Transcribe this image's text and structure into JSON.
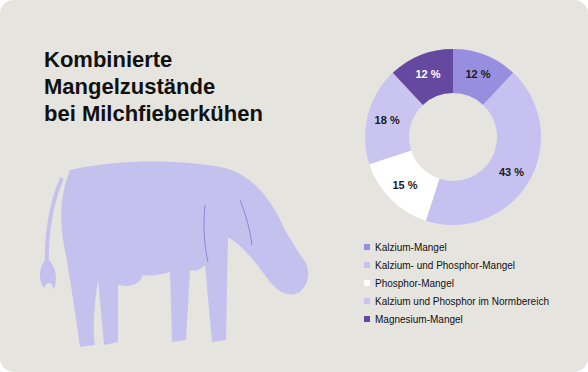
{
  "chart_data": {
    "type": "pie",
    "title": "Kombinierte\nMangelzustände\nbei Milchfieberkühen",
    "categories": [
      "Kalzium-Mangel",
      "Kalzium- und Phosphor-Mangel",
      "Phosphor-Mangel",
      "Kalzium und Phosphor im Normbereich",
      "Magnesium-Mangel"
    ],
    "values": [
      12,
      43,
      15,
      18,
      12
    ],
    "value_labels": [
      "12 %",
      "43 %",
      "15 %",
      "18 %",
      "12 %"
    ],
    "colors": [
      "#978ee0",
      "#c6c1f0",
      "#ffffff",
      "#c9c5f0",
      "#65489f"
    ],
    "data_labels": true
  }
}
